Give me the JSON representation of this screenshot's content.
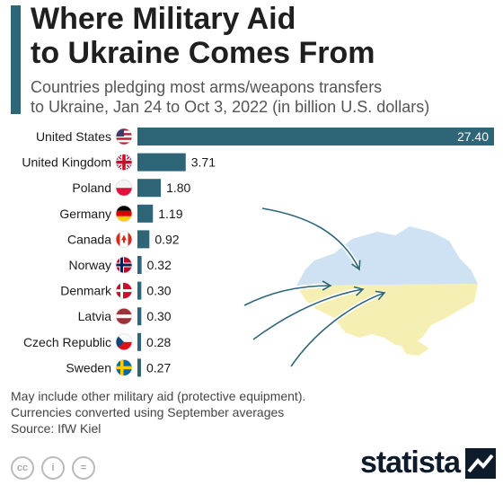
{
  "header": {
    "title_line1": "Where Military Aid",
    "title_line2": "to Ukraine Comes From",
    "subtitle_line1": "Countries pledging most arms/weapons transfers",
    "subtitle_line2": "to Ukraine, Jan 24 to Oct 3, 2022 (in billion U.S. dollars)"
  },
  "colors": {
    "bar": "#2e6577",
    "accent": "#2e6577",
    "map_blue": "#cfe2f3",
    "map_yellow": "#f6efb4",
    "arrow": "#2e6577"
  },
  "chart_data": {
    "type": "bar",
    "orientation": "horizontal",
    "categories": [
      "United States",
      "United Kingdom",
      "Poland",
      "Germany",
      "Canada",
      "Norway",
      "Denmark",
      "Latvia",
      "Czech Republic",
      "Sweden"
    ],
    "values": [
      27.4,
      3.71,
      1.8,
      1.19,
      0.92,
      0.32,
      0.3,
      0.3,
      0.28,
      0.27
    ],
    "value_labels": [
      "27.40",
      "3.71",
      "1.80",
      "1.19",
      "0.92",
      "0.32",
      "0.30",
      "0.30",
      "0.28",
      "0.27"
    ],
    "flags": [
      "flag-united-states",
      "flag-united-kingdom",
      "flag-poland",
      "flag-germany",
      "flag-canada",
      "flag-norway",
      "flag-denmark",
      "flag-latvia",
      "flag-czech-republic",
      "flag-sweden"
    ],
    "xlim": [
      0,
      27.4
    ],
    "grid": false,
    "legend": "none"
  },
  "notes": {
    "line1": "May include other military aid (protective equipment).",
    "line2": "Currencies converted using September averages",
    "source": "Source: IfW Kiel"
  },
  "footer": {
    "cc_label": "cc",
    "by_label": "i",
    "nd_label": "=",
    "brand": "statista"
  }
}
